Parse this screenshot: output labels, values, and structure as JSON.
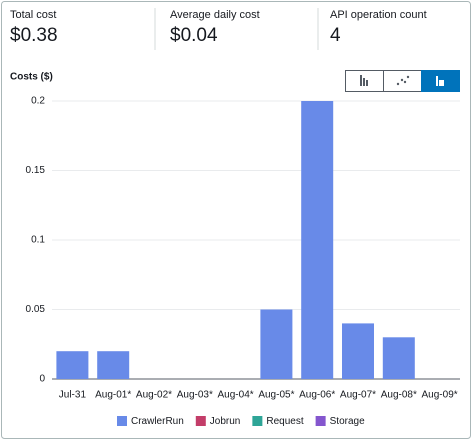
{
  "summary": [
    {
      "label": "Total cost",
      "value": "$0.38"
    },
    {
      "label": "Average daily cost",
      "value": "$0.04"
    },
    {
      "label": "API operation count",
      "value": "4"
    }
  ],
  "chart_data": {
    "type": "stacked_bar",
    "y_label": "Costs ($)",
    "categories": [
      "Jul-31",
      "Aug-01*",
      "Aug-02*",
      "Aug-03*",
      "Aug-04*",
      "Aug-05*",
      "Aug-06*",
      "Aug-07*",
      "Aug-08*",
      "Aug-09*"
    ],
    "series": [
      {
        "name": "CrawlerRun",
        "color": "#688ae8",
        "values": [
          0.02,
          0.02,
          0,
          0,
          0,
          0.05,
          0.2,
          0.04,
          0.03,
          0
        ]
      },
      {
        "name": "Jobrun",
        "color": "#c33d69",
        "values": [
          0,
          0,
          0,
          0,
          0,
          0,
          0,
          0,
          0,
          0
        ]
      },
      {
        "name": "Request",
        "color": "#2ea597",
        "values": [
          0,
          0,
          0,
          0,
          0,
          0,
          0,
          0,
          0,
          0
        ]
      },
      {
        "name": "Storage",
        "color": "#8456ce",
        "values": [
          0,
          0,
          0,
          0,
          0,
          0,
          0,
          0,
          0,
          0
        ]
      }
    ],
    "ylim": [
      0,
      0.2
    ],
    "yticks": [
      0,
      0.05,
      0.1,
      0.15,
      0.2
    ],
    "grid": true
  }
}
